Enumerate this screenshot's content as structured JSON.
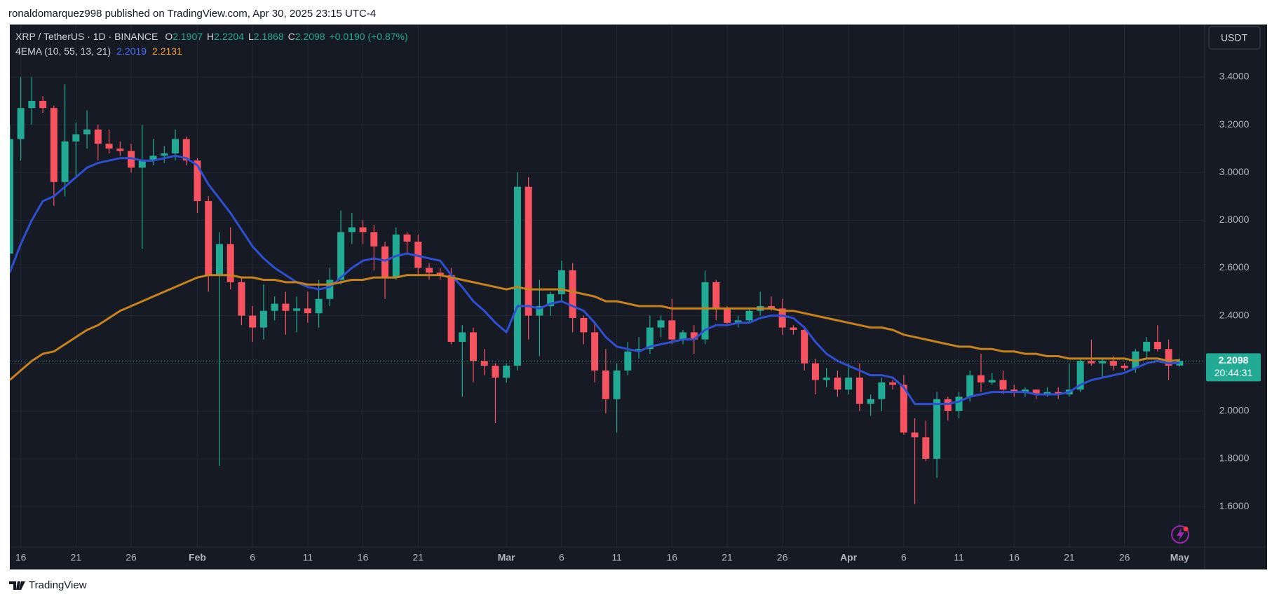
{
  "attribution": "ronaldomarquez998 published on TradingView.com, Apr 30, 2025 23:15 UTC-4",
  "footer": {
    "brand": "TradingView"
  },
  "chart_data": {
    "type": "candlestick",
    "symbol": "XRP / TetherUS · 1D · BINANCE",
    "ohlc_legend": [
      {
        "label": "O",
        "value": 2.1907
      },
      {
        "label": "H",
        "value": 2.2204
      },
      {
        "label": "L",
        "value": 2.1868
      },
      {
        "label": "C",
        "value": 2.2098
      }
    ],
    "change": "+0.0190 (+0.87%)",
    "currency": "USDT",
    "up_color": "#22ab94",
    "down_color": "#f7525f",
    "grid": true,
    "ylim": [
      1.43,
      3.62
    ],
    "yticks": [
      {
        "value": 1.6,
        "label": "1.6000"
      },
      {
        "value": 1.8,
        "label": "1.8000"
      },
      {
        "value": 2.0,
        "label": "2.0000"
      },
      {
        "value": 2.2,
        "label": "2.2000"
      },
      {
        "value": 2.4,
        "label": "2.4000"
      },
      {
        "value": 2.6,
        "label": "2.6000"
      },
      {
        "value": 2.8,
        "label": "2.8000"
      },
      {
        "value": 3.0,
        "label": "3.0000"
      },
      {
        "value": 3.2,
        "label": "3.2000"
      },
      {
        "value": 3.4,
        "label": "3.4000"
      }
    ],
    "last_price": {
      "value": 2.2098,
      "countdown": "20:44:31",
      "color": "#22ab94"
    },
    "categories": [
      null,
      "16",
      null,
      null,
      null,
      null,
      "21",
      null,
      null,
      null,
      null,
      "26",
      null,
      null,
      null,
      null,
      null,
      "Feb",
      null,
      null,
      null,
      null,
      "6",
      null,
      null,
      null,
      null,
      "11",
      null,
      null,
      null,
      null,
      "16",
      null,
      null,
      null,
      null,
      "21",
      null,
      null,
      null,
      null,
      null,
      null,
      null,
      "Mar",
      null,
      null,
      null,
      null,
      "6",
      null,
      null,
      null,
      null,
      "11",
      null,
      null,
      null,
      null,
      "16",
      null,
      null,
      null,
      null,
      "21",
      null,
      null,
      null,
      null,
      "26",
      null,
      null,
      null,
      null,
      null,
      "Apr",
      null,
      null,
      null,
      null,
      "6",
      null,
      null,
      null,
      null,
      "11",
      null,
      null,
      null,
      null,
      "16",
      null,
      null,
      null,
      null,
      "21",
      null,
      null,
      null,
      null,
      "26",
      null,
      null,
      null,
      null,
      "May"
    ],
    "open": [
      2.66,
      3.14,
      3.27,
      3.3,
      3.27,
      2.96,
      3.13,
      3.16,
      3.18,
      3.12,
      3.1,
      3.09,
      3.02,
      3.05,
      3.07,
      3.08,
      3.14,
      3.05,
      2.88,
      2.57,
      2.7,
      2.54,
      2.4,
      2.35,
      2.42,
      2.45,
      2.42,
      2.43,
      2.41,
      2.47,
      2.55,
      2.75,
      2.77,
      2.75,
      2.69,
      2.56,
      2.74,
      2.71,
      2.6,
      2.58,
      2.57,
      2.29,
      2.33,
      2.21,
      2.19,
      2.14,
      2.19,
      2.94,
      2.4,
      2.44,
      2.49,
      2.59,
      2.39,
      2.33,
      2.17,
      2.05,
      2.17,
      2.25,
      2.26,
      2.35,
      2.38,
      2.3,
      2.33,
      2.3,
      2.54,
      2.43,
      2.37,
      2.38,
      2.42,
      2.44,
      2.43,
      2.35,
      2.34,
      2.2,
      2.13,
      2.14,
      2.09,
      2.14,
      2.03,
      2.05,
      2.12,
      2.11,
      1.91,
      1.89,
      1.8,
      2.05,
      2.0,
      2.06,
      2.15,
      2.12,
      2.13,
      2.09,
      2.08,
      2.09,
      2.07,
      2.08,
      2.07,
      2.09,
      2.21,
      2.2,
      2.21,
      2.19,
      2.18,
      2.25,
      2.29,
      2.26,
      2.1907
    ],
    "high": [
      3.2,
      3.4,
      3.4,
      3.32,
      3.28,
      3.37,
      3.21,
      3.26,
      3.2,
      3.18,
      3.13,
      3.12,
      3.2,
      3.14,
      3.11,
      3.18,
      3.15,
      3.06,
      2.9,
      2.75,
      2.77,
      2.56,
      2.44,
      2.53,
      2.48,
      2.5,
      2.48,
      2.5,
      2.55,
      2.6,
      2.84,
      2.83,
      2.8,
      2.78,
      2.71,
      2.77,
      2.75,
      2.74,
      2.62,
      2.6,
      2.6,
      2.36,
      2.35,
      2.26,
      2.2,
      2.2,
      3.0,
      2.98,
      2.55,
      2.5,
      2.63,
      2.62,
      2.4,
      2.37,
      2.26,
      2.2,
      2.29,
      2.31,
      2.4,
      2.4,
      2.47,
      2.34,
      2.36,
      2.59,
      2.55,
      2.44,
      2.4,
      2.43,
      2.5,
      2.48,
      2.47,
      2.36,
      2.35,
      2.22,
      2.18,
      2.17,
      2.2,
      2.2,
      2.07,
      2.14,
      2.13,
      2.15,
      1.97,
      1.96,
      2.08,
      2.06,
      2.08,
      2.17,
      2.24,
      2.16,
      2.17,
      2.11,
      2.1,
      2.09,
      2.1,
      2.1,
      2.2,
      2.22,
      2.3,
      2.22,
      2.23,
      2.2,
      2.26,
      2.31,
      2.36,
      2.3,
      2.2204
    ],
    "low": [
      2.6,
      3.05,
      3.2,
      3.25,
      2.86,
      2.9,
      2.98,
      3.1,
      3.05,
      3.08,
      3.07,
      3.0,
      2.68,
      3.03,
      3.04,
      3.05,
      3.03,
      2.83,
      2.5,
      1.77,
      2.51,
      2.36,
      2.29,
      2.3,
      2.38,
      2.32,
      2.33,
      2.37,
      2.35,
      2.44,
      2.53,
      2.7,
      2.7,
      2.59,
      2.47,
      2.55,
      2.66,
      2.57,
      2.55,
      2.55,
      2.28,
      2.06,
      2.12,
      2.15,
      1.95,
      2.12,
      2.17,
      2.3,
      2.23,
      2.4,
      2.46,
      2.33,
      2.28,
      2.12,
      1.99,
      1.91,
      2.15,
      2.22,
      2.24,
      2.31,
      2.28,
      2.28,
      2.24,
      2.28,
      2.38,
      2.36,
      2.35,
      2.37,
      2.4,
      2.42,
      2.32,
      2.32,
      2.17,
      2.07,
      2.1,
      2.06,
      2.07,
      2.0,
      1.98,
      2.0,
      2.09,
      1.9,
      1.61,
      1.79,
      1.72,
      1.96,
      1.97,
      2.04,
      2.08,
      2.11,
      2.07,
      2.06,
      2.06,
      2.05,
      2.06,
      2.05,
      2.06,
      2.08,
      2.19,
      2.14,
      2.17,
      2.17,
      2.16,
      2.22,
      2.25,
      2.13,
      2.1868
    ],
    "close": [
      3.14,
      3.27,
      3.3,
      3.27,
      2.96,
      3.13,
      3.16,
      3.18,
      3.12,
      3.1,
      3.09,
      3.02,
      3.05,
      3.07,
      3.08,
      3.14,
      3.05,
      2.88,
      2.57,
      2.7,
      2.54,
      2.4,
      2.35,
      2.42,
      2.45,
      2.42,
      2.43,
      2.41,
      2.47,
      2.55,
      2.75,
      2.77,
      2.75,
      2.69,
      2.56,
      2.74,
      2.71,
      2.6,
      2.58,
      2.57,
      2.29,
      2.33,
      2.21,
      2.19,
      2.14,
      2.19,
      2.94,
      2.4,
      2.44,
      2.49,
      2.59,
      2.39,
      2.33,
      2.17,
      2.05,
      2.17,
      2.25,
      2.26,
      2.35,
      2.38,
      2.3,
      2.33,
      2.3,
      2.54,
      2.43,
      2.37,
      2.38,
      2.42,
      2.44,
      2.43,
      2.35,
      2.34,
      2.2,
      2.13,
      2.14,
      2.09,
      2.14,
      2.03,
      2.05,
      2.12,
      2.11,
      1.91,
      1.89,
      1.8,
      2.05,
      2.0,
      2.06,
      2.15,
      2.12,
      2.13,
      2.09,
      2.08,
      2.09,
      2.07,
      2.08,
      2.07,
      2.09,
      2.21,
      2.2,
      2.21,
      2.19,
      2.18,
      2.25,
      2.29,
      2.26,
      2.19,
      2.2098
    ],
    "indicator": {
      "name": "4EMA (10, 55, 13, 21)",
      "series": [
        {
          "color": "#2f4fd3",
          "last": 2.2019,
          "values": [
            2.58,
            2.7,
            2.8,
            2.88,
            2.9,
            2.94,
            2.98,
            3.02,
            3.04,
            3.05,
            3.06,
            3.06,
            3.05,
            3.05,
            3.06,
            3.07,
            3.06,
            3.03,
            2.95,
            2.89,
            2.83,
            2.76,
            2.69,
            2.64,
            2.6,
            2.57,
            2.54,
            2.52,
            2.51,
            2.52,
            2.56,
            2.6,
            2.63,
            2.64,
            2.63,
            2.65,
            2.66,
            2.65,
            2.64,
            2.63,
            2.57,
            2.52,
            2.46,
            2.42,
            2.37,
            2.33,
            2.44,
            2.44,
            2.43,
            2.45,
            2.46,
            2.44,
            2.42,
            2.37,
            2.31,
            2.27,
            2.26,
            2.25,
            2.27,
            2.28,
            2.29,
            2.3,
            2.3,
            2.34,
            2.36,
            2.36,
            2.37,
            2.37,
            2.39,
            2.4,
            2.4,
            2.39,
            2.35,
            2.29,
            2.24,
            2.21,
            2.19,
            2.17,
            2.15,
            2.15,
            2.14,
            2.1,
            2.03,
            2.03,
            2.03,
            2.03,
            2.04,
            2.06,
            2.07,
            2.08,
            2.08,
            2.08,
            2.08,
            2.07,
            2.07,
            2.07,
            2.08,
            2.11,
            2.13,
            2.14,
            2.15,
            2.16,
            2.18,
            2.2,
            2.21,
            2.2,
            2.2019
          ]
        },
        {
          "color": "#c8821b",
          "last": 2.2131,
          "values": [
            2.13,
            2.17,
            2.21,
            2.24,
            2.25,
            2.28,
            2.31,
            2.34,
            2.36,
            2.39,
            2.42,
            2.44,
            2.46,
            2.48,
            2.5,
            2.52,
            2.54,
            2.56,
            2.57,
            2.57,
            2.57,
            2.56,
            2.56,
            2.55,
            2.55,
            2.54,
            2.54,
            2.53,
            2.53,
            2.53,
            2.54,
            2.55,
            2.55,
            2.56,
            2.56,
            2.56,
            2.57,
            2.57,
            2.57,
            2.57,
            2.56,
            2.55,
            2.54,
            2.53,
            2.52,
            2.51,
            2.52,
            2.51,
            2.51,
            2.51,
            2.51,
            2.5,
            2.49,
            2.48,
            2.46,
            2.46,
            2.45,
            2.44,
            2.44,
            2.44,
            2.43,
            2.43,
            2.43,
            2.43,
            2.43,
            2.43,
            2.43,
            2.43,
            2.43,
            2.43,
            2.42,
            2.42,
            2.41,
            2.4,
            2.39,
            2.38,
            2.37,
            2.36,
            2.35,
            2.35,
            2.34,
            2.32,
            2.31,
            2.3,
            2.29,
            2.28,
            2.27,
            2.27,
            2.26,
            2.26,
            2.25,
            2.25,
            2.24,
            2.24,
            2.23,
            2.23,
            2.22,
            2.22,
            2.22,
            2.22,
            2.22,
            2.22,
            2.21,
            2.22,
            2.22,
            2.21,
            2.2131
          ]
        }
      ]
    }
  }
}
